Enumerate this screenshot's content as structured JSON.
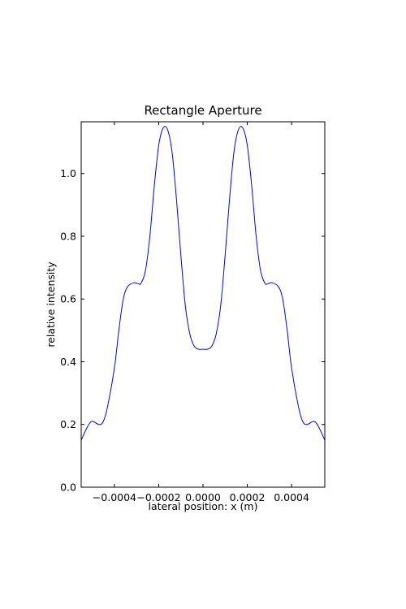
{
  "chart_data": {
    "type": "line",
    "title": "Rectangle Aperture",
    "xlabel": "lateral position: x (m)",
    "ylabel": "relative intensity",
    "xlim": [
      -0.00055,
      0.00055
    ],
    "ylim": [
      0.0,
      1.165
    ],
    "xticks": [
      -0.0004,
      -0.0002,
      0.0,
      0.0002,
      0.0004
    ],
    "xtick_labels": [
      "−0.0004",
      "−0.0002",
      "0.0000",
      "0.0002",
      "0.0004"
    ],
    "yticks": [
      0.0,
      0.2,
      0.4,
      0.6,
      0.8,
      1.0
    ],
    "ytick_labels": [
      "0.0",
      "0.2",
      "0.4",
      "0.6",
      "0.8",
      "1.0"
    ],
    "grid": false,
    "line_color": "#0000ff",
    "series": [
      {
        "x": [
          -0.00055,
          -0.00052,
          -0.0005,
          -0.00047,
          -0.00045,
          -0.00043,
          -0.0004,
          -0.00038,
          -0.00036,
          -0.00034,
          -0.00031,
          -0.00029,
          -0.00028,
          -0.00026,
          -0.00024,
          -0.00022,
          -0.0002,
          -0.00018,
          -0.00016,
          -0.00014,
          -0.00012,
          -0.0001,
          -8e-05,
          -6e-05,
          -4e-05,
          -2e-05,
          0.0,
          2e-05,
          4e-05,
          6e-05,
          8e-05,
          0.0001,
          0.00012,
          0.00014,
          0.00016,
          0.00018,
          0.0002,
          0.00022,
          0.00024,
          0.00026,
          0.00028,
          0.00029,
          0.00031,
          0.00034,
          0.00036,
          0.00038,
          0.0004,
          0.00043,
          0.00045,
          0.00047,
          0.0005,
          0.00052,
          0.00055
        ],
        "y": [
          0.15,
          0.195,
          0.21,
          0.2,
          0.21,
          0.26,
          0.38,
          0.5,
          0.6,
          0.64,
          0.652,
          0.648,
          0.65,
          0.69,
          0.8,
          0.96,
          1.09,
          1.145,
          1.14,
          1.07,
          0.92,
          0.74,
          0.58,
          0.49,
          0.45,
          0.44,
          0.44,
          0.44,
          0.45,
          0.49,
          0.58,
          0.74,
          0.92,
          1.07,
          1.14,
          1.145,
          1.09,
          0.96,
          0.8,
          0.69,
          0.65,
          0.648,
          0.652,
          0.64,
          0.6,
          0.5,
          0.38,
          0.26,
          0.21,
          0.2,
          0.21,
          0.195,
          0.15
        ]
      }
    ]
  }
}
